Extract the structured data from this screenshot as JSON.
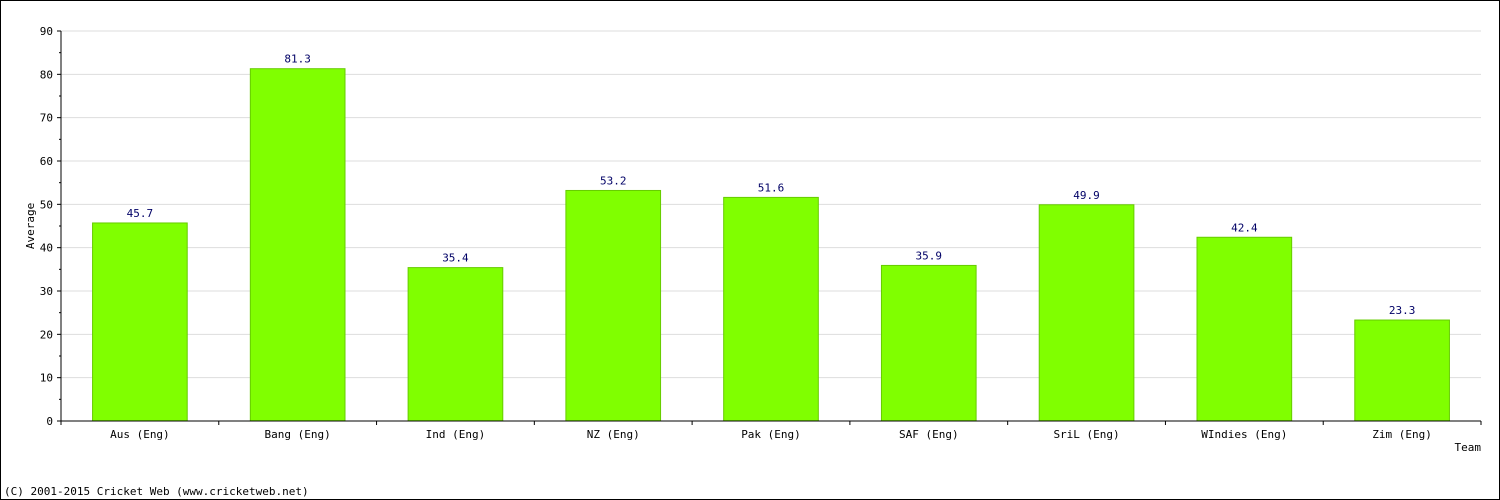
{
  "chart_data": {
    "type": "bar",
    "categories": [
      "Aus (Eng)",
      "Bang (Eng)",
      "Ind (Eng)",
      "NZ (Eng)",
      "Pak (Eng)",
      "SAF (Eng)",
      "SriL (Eng)",
      "WIndies (Eng)",
      "Zim (Eng)"
    ],
    "values": [
      45.7,
      81.3,
      35.4,
      53.2,
      51.6,
      35.9,
      49.9,
      42.4,
      23.3
    ],
    "data_labels": [
      "45.7",
      "81.3",
      "35.4",
      "53.2",
      "51.6",
      "35.9",
      "49.9",
      "42.4",
      "23.3"
    ],
    "xlabel": "Team",
    "ylabel": "Average",
    "ylim": [
      0,
      90
    ],
    "yticks": [
      0,
      10,
      20,
      30,
      40,
      50,
      60,
      70,
      80,
      90
    ],
    "grid": true,
    "legend": "none"
  },
  "colors": {
    "bar_fill": "#80ff00",
    "bar_stroke": "#66cc00",
    "grid": "#dddddd",
    "axis": "#000000",
    "data_label": "#000066"
  },
  "footer": "(C) 2001-2015 Cricket Web (www.cricketweb.net)"
}
